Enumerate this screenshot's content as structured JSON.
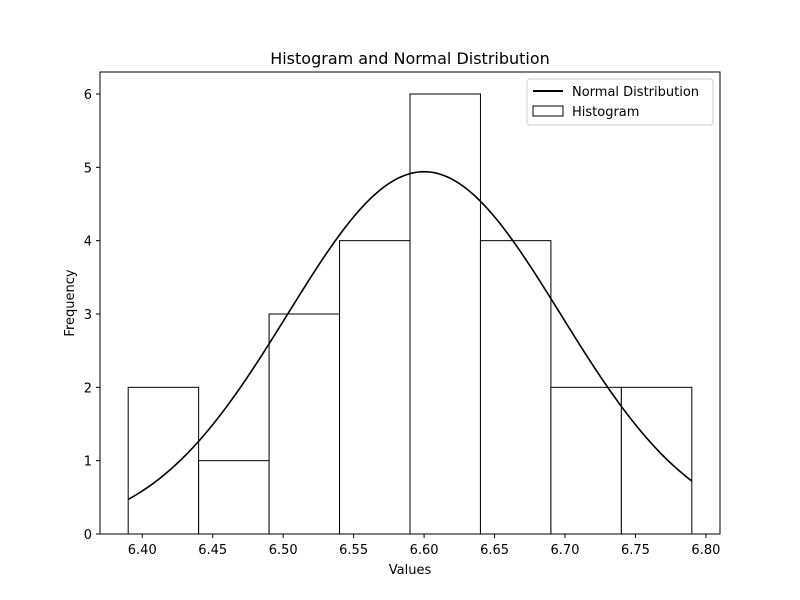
{
  "chart_data": {
    "type": "bar",
    "title": "Histogram and Normal Distribution",
    "xlabel": "Values",
    "ylabel": "Frequency",
    "xlim": [
      6.37,
      6.81
    ],
    "ylim": [
      0,
      6.3
    ],
    "xticks": [
      6.4,
      6.45,
      6.5,
      6.55,
      6.6,
      6.65,
      6.7,
      6.75,
      6.8
    ],
    "xtick_labels": [
      "6.40",
      "6.45",
      "6.50",
      "6.55",
      "6.60",
      "6.65",
      "6.70",
      "6.75",
      "6.80"
    ],
    "yticks": [
      0,
      1,
      2,
      3,
      4,
      5,
      6
    ],
    "ytick_labels": [
      "0",
      "1",
      "2",
      "3",
      "4",
      "5",
      "6"
    ],
    "histogram": {
      "name": "Histogram",
      "bin_edges": [
        6.39,
        6.44,
        6.49,
        6.54,
        6.59,
        6.64,
        6.69,
        6.74,
        6.79
      ],
      "counts": [
        2,
        1,
        3,
        4,
        6,
        4,
        2,
        2
      ],
      "fill": "#ffffff",
      "edge_color": "#000000"
    },
    "normal_curve": {
      "name": "Normal Distribution",
      "mean": 6.6,
      "std": 0.0969,
      "scale": 1.2,
      "x_range": [
        6.39,
        6.79
      ],
      "color": "#000000"
    },
    "legend": {
      "position": "top-right",
      "entries": [
        "Normal Distribution",
        "Histogram"
      ]
    },
    "grid": false
  }
}
